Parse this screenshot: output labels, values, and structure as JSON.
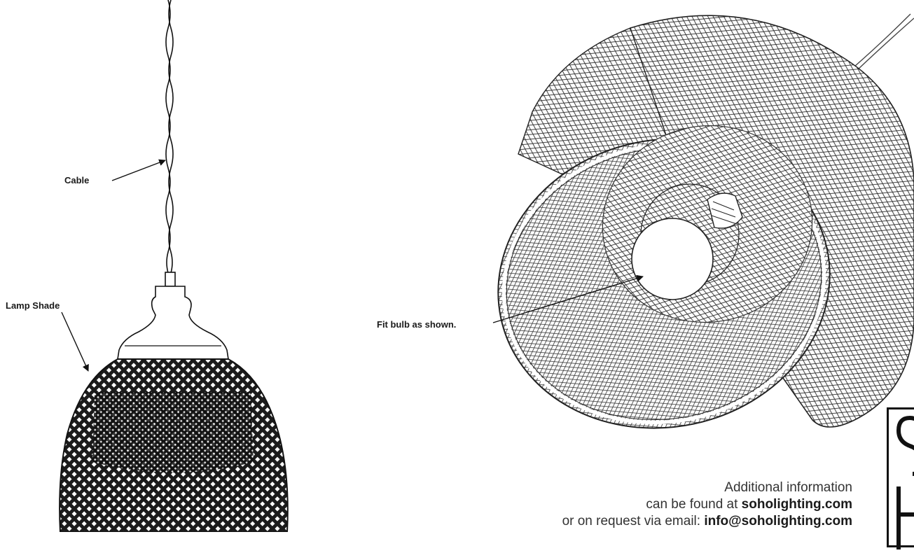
{
  "labels": {
    "cable": "Cable",
    "lamp_shade": "Lamp Shade",
    "fit_bulb": "Fit bulb as shown."
  },
  "info": {
    "line1": "Additional information",
    "line2_prefix": "can be found at ",
    "line2_link": "soholighting.com",
    "line3_prefix": "or on request via email: ",
    "line3_link": "info@soholighting.com"
  },
  "colors": {
    "ink": "#111111",
    "text": "#333333",
    "background": "#ffffff"
  },
  "icons": [
    "lamp-pendant-illustration",
    "lamp-shade-tilted-illustration",
    "bulb-icon",
    "soho-logo"
  ]
}
